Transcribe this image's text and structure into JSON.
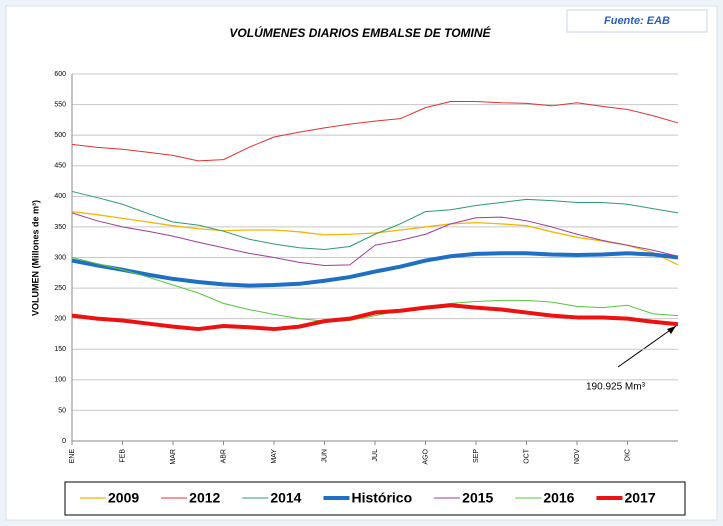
{
  "chart_data": {
    "type": "line",
    "title": "VOLÚMENES DIARIOS EMBALSE DE TOMINÉ",
    "source": "Fuente: EAB",
    "y_label": "VOLUMEN (Millones de m³)",
    "annotation": "190.925 Mm³",
    "categories": [
      "ENE",
      null,
      "FEB",
      null,
      "MAR",
      null,
      "ABR",
      null,
      "MAY",
      null,
      "JUN",
      null,
      "JUL",
      null,
      "AGO",
      null,
      "SEP",
      null,
      "OCT",
      null,
      "NOV",
      null,
      "DIC",
      null,
      null
    ],
    "ylim": [
      0,
      600
    ],
    "yticks": [
      0,
      50,
      100,
      150,
      200,
      250,
      300,
      350,
      400,
      450,
      500,
      550,
      600
    ],
    "grid": true,
    "legend": "bottom",
    "series": [
      {
        "name": "2009",
        "color": "#f2b705",
        "line_width": 1.3,
        "values": [
          375,
          370,
          364,
          358,
          352,
          347,
          344,
          345,
          345,
          342,
          337,
          338,
          340,
          345,
          350,
          355,
          357,
          355,
          352,
          342,
          333,
          327,
          320,
          308,
          288
        ]
      },
      {
        "name": "2012",
        "color": "#e03232",
        "line_width": 1,
        "values": [
          485,
          480,
          477,
          472,
          467,
          458,
          460,
          480,
          497,
          505,
          512,
          518,
          523,
          527,
          545,
          555,
          555,
          553,
          552,
          548,
          553,
          547,
          542,
          532,
          520
        ]
      },
      {
        "name": "2014",
        "color": "#2e9a70",
        "line_width": 1,
        "values": [
          408,
          398,
          387,
          372,
          358,
          353,
          343,
          330,
          322,
          316,
          313,
          318,
          338,
          355,
          375,
          378,
          385,
          390,
          395,
          393,
          390,
          390,
          387,
          380,
          373
        ]
      },
      {
        "name": "Histórico",
        "color": "#1f6fc4",
        "line_width": 4,
        "values": [
          295,
          287,
          280,
          272,
          265,
          260,
          256,
          254,
          255,
          257,
          262,
          268,
          277,
          285,
          295,
          302,
          306,
          307,
          307,
          305,
          304,
          305,
          307,
          305,
          300
        ]
      },
      {
        "name": "2015",
        "color": "#9c3d9c",
        "line_width": 1,
        "values": [
          373,
          360,
          350,
          343,
          335,
          325,
          316,
          307,
          300,
          292,
          287,
          288,
          320,
          328,
          338,
          355,
          365,
          366,
          360,
          350,
          338,
          328,
          320,
          312,
          302
        ]
      },
      {
        "name": "2016",
        "color": "#55c83c",
        "line_width": 1,
        "values": [
          300,
          290,
          280,
          268,
          255,
          242,
          225,
          215,
          207,
          200,
          196,
          197,
          205,
          213,
          220,
          225,
          228,
          230,
          230,
          227,
          220,
          218,
          222,
          208,
          205
        ]
      },
      {
        "name": "2017",
        "color": "#ee1111",
        "line_width": 4,
        "values": [
          205,
          200,
          197,
          192,
          187,
          183,
          188,
          186,
          183,
          187,
          196,
          200,
          210,
          213,
          218,
          222,
          218,
          215,
          210,
          205,
          202,
          202,
          200,
          195,
          190.925
        ]
      }
    ]
  }
}
